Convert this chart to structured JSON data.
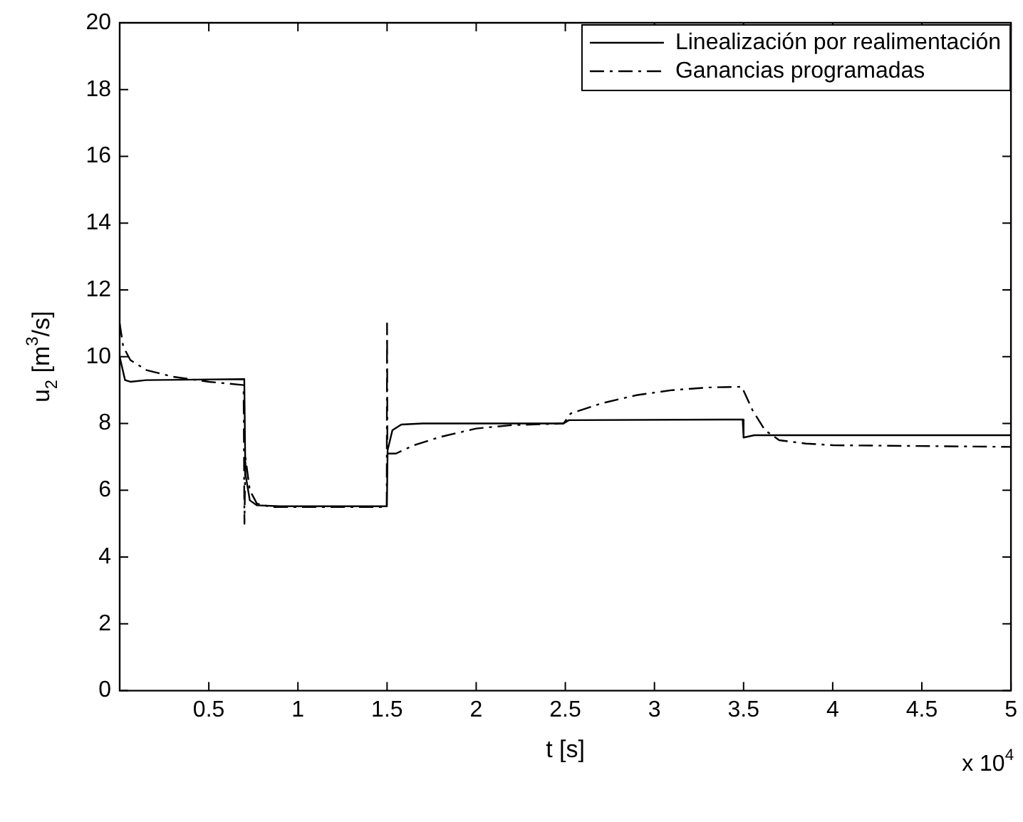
{
  "chart_data": {
    "type": "line",
    "xlabel": "t [s]",
    "ylabel": "u$_{2}$ [m$^{3}$/s]",
    "annotations": [
      "x 10$^{4}$"
    ],
    "xlim": [
      0,
      5
    ],
    "xticks": [
      0.5,
      1,
      1.5,
      2,
      2.5,
      3,
      3.5,
      4,
      4.5,
      5
    ],
    "ylim": [
      0,
      20
    ],
    "yticks": [
      0,
      2,
      4,
      6,
      8,
      10,
      12,
      14,
      16,
      18,
      20
    ],
    "grid": false,
    "legend": "top right",
    "marker": "none",
    "series": [
      {
        "name": "Linealización por realimentación",
        "color": "#000000",
        "line_style": "solid",
        "x": [
          0,
          0.03,
          0.06,
          0.15,
          0.699,
          0.705,
          0.73,
          0.77,
          0.9,
          1.499,
          1.503,
          1.53,
          1.58,
          1.7,
          2.49,
          2.52,
          3.495,
          3.5,
          3.56,
          5
        ],
        "values": [
          10.0,
          9.3,
          9.25,
          9.3,
          9.33,
          6.5,
          5.7,
          5.55,
          5.52,
          5.52,
          7.2,
          7.8,
          7.97,
          8.0,
          8.0,
          8.1,
          8.12,
          7.58,
          7.65,
          7.65
        ]
      },
      {
        "name": "Ganancias programadas",
        "color": "#000000",
        "line_style": "dashdot",
        "x": [
          0,
          0.02,
          0.06,
          0.15,
          0.3,
          0.5,
          0.695,
          0.7,
          0.705,
          0.73,
          0.77,
          0.85,
          1.498,
          1.5,
          1.502,
          1.55,
          1.65,
          1.8,
          2,
          2.2,
          2.49,
          2.53,
          2.7,
          2.9,
          3.1,
          3.3,
          3.49,
          3.55,
          3.62,
          3.7,
          3.85,
          4,
          5
        ],
        "values": [
          11.0,
          10.3,
          9.9,
          9.6,
          9.4,
          9.25,
          9.15,
          5.0,
          7.0,
          6.0,
          5.6,
          5.5,
          5.5,
          11.0,
          7.1,
          7.1,
          7.35,
          7.6,
          7.85,
          7.95,
          8.0,
          8.3,
          8.6,
          8.85,
          9.0,
          9.08,
          9.1,
          8.4,
          7.8,
          7.5,
          7.4,
          7.35,
          7.3
        ]
      }
    ]
  }
}
